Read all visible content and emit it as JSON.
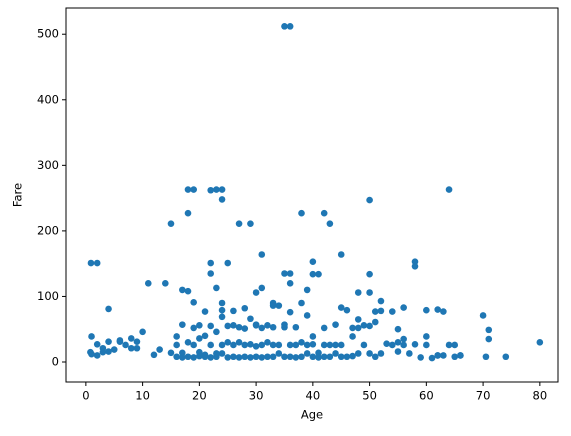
{
  "chart_data": {
    "type": "scatter",
    "x_label": "Age",
    "y_label": "Fare",
    "color": "#1f77b4",
    "xlim": [
      -3.5,
      83.2
    ],
    "ylim": [
      -30.5,
      540
    ],
    "xticks": [
      0,
      10,
      20,
      30,
      40,
      50,
      60,
      70,
      80
    ],
    "yticks": [
      0,
      100,
      200,
      300,
      400,
      500
    ],
    "x": [
      35,
      36,
      0.9,
      2,
      18,
      19,
      22,
      23,
      24,
      24,
      50,
      64,
      18,
      38,
      42,
      43,
      27,
      29,
      15,
      45,
      31,
      40,
      58,
      58,
      22,
      25,
      22,
      36,
      35,
      41,
      40,
      50,
      11,
      14,
      36,
      17,
      18,
      4,
      38,
      33,
      30,
      31,
      23,
      21,
      24,
      19,
      52,
      48,
      56,
      39,
      60,
      62,
      63,
      70,
      71,
      71,
      74,
      80,
      70.5,
      65,
      62,
      66,
      1,
      2,
      3,
      4,
      5,
      6,
      7,
      8,
      9,
      10,
      0.8,
      1,
      2,
      3,
      4,
      6,
      8,
      9,
      12,
      13,
      16,
      17,
      18,
      19,
      20,
      21,
      22,
      23,
      24,
      25,
      16,
      17,
      18,
      19,
      20,
      21,
      22,
      23,
      24,
      25,
      26,
      27,
      28,
      29,
      30,
      31,
      32,
      33,
      34,
      35,
      26,
      27,
      28,
      29,
      30,
      31,
      32,
      33,
      34,
      35,
      36,
      37,
      38,
      39,
      40,
      41,
      42,
      43,
      44,
      45,
      36,
      37,
      38,
      39,
      40,
      41,
      42,
      43,
      44,
      45,
      46,
      47,
      48,
      49,
      50,
      51,
      52,
      54,
      55,
      56,
      46,
      47,
      48,
      49,
      50,
      51,
      52,
      54,
      55,
      56,
      57,
      58,
      59,
      60,
      61,
      62,
      63,
      64,
      65,
      66,
      20,
      22,
      24,
      25,
      26,
      28,
      30,
      32,
      34,
      36,
      21,
      23,
      27,
      29,
      31,
      33,
      35,
      37,
      39,
      42,
      15,
      16,
      17,
      19,
      20,
      24,
      26,
      28,
      30,
      33,
      40,
      44,
      45,
      47,
      48,
      50,
      51,
      53,
      55,
      60
    ],
    "values": [
      512,
      512,
      151,
      151,
      263,
      263,
      262,
      263,
      263,
      248,
      247,
      263,
      227,
      227,
      227,
      211,
      211,
      211,
      211,
      164,
      164,
      153,
      153,
      146,
      151,
      151,
      135,
      135,
      135,
      134,
      134,
      134,
      120,
      120,
      120,
      110,
      108,
      81,
      90,
      90,
      106,
      113,
      113,
      77,
      90,
      91,
      93,
      106,
      83,
      110,
      79,
      80,
      77,
      71,
      49,
      35,
      8,
      30,
      8,
      8,
      10,
      10,
      39,
      27,
      21,
      31,
      19,
      31,
      26,
      21,
      31,
      46,
      15,
      12,
      10,
      15,
      16,
      33,
      36,
      21,
      11,
      19,
      8,
      7,
      8,
      7,
      9,
      8,
      7,
      8,
      13,
      7,
      26,
      14,
      30,
      26,
      15,
      11,
      26,
      13,
      26,
      30,
      8,
      7,
      8,
      7,
      8,
      7,
      8,
      8,
      13,
      8,
      26,
      30,
      26,
      27,
      24,
      26,
      30,
      26,
      26,
      53,
      8,
      7,
      8,
      13,
      8,
      7,
      8,
      8,
      13,
      8,
      26,
      26,
      30,
      26,
      27,
      14,
      26,
      26,
      26,
      26,
      8,
      9,
      13,
      26,
      13,
      8,
      13,
      26,
      16,
      26,
      79,
      52,
      52,
      56,
      55,
      61,
      78,
      77,
      50,
      35,
      13,
      27,
      7,
      26,
      6,
      10,
      10,
      26,
      26,
      10,
      56,
      55,
      79,
      55,
      56,
      51,
      57,
      56,
      86,
      76,
      40,
      46,
      53,
      66,
      52,
      53,
      57,
      53,
      71,
      52,
      14,
      39,
      57,
      52,
      36,
      69,
      78,
      82,
      56,
      86,
      39,
      57,
      83,
      39,
      65,
      106,
      77,
      28,
      30,
      39
    ]
  }
}
